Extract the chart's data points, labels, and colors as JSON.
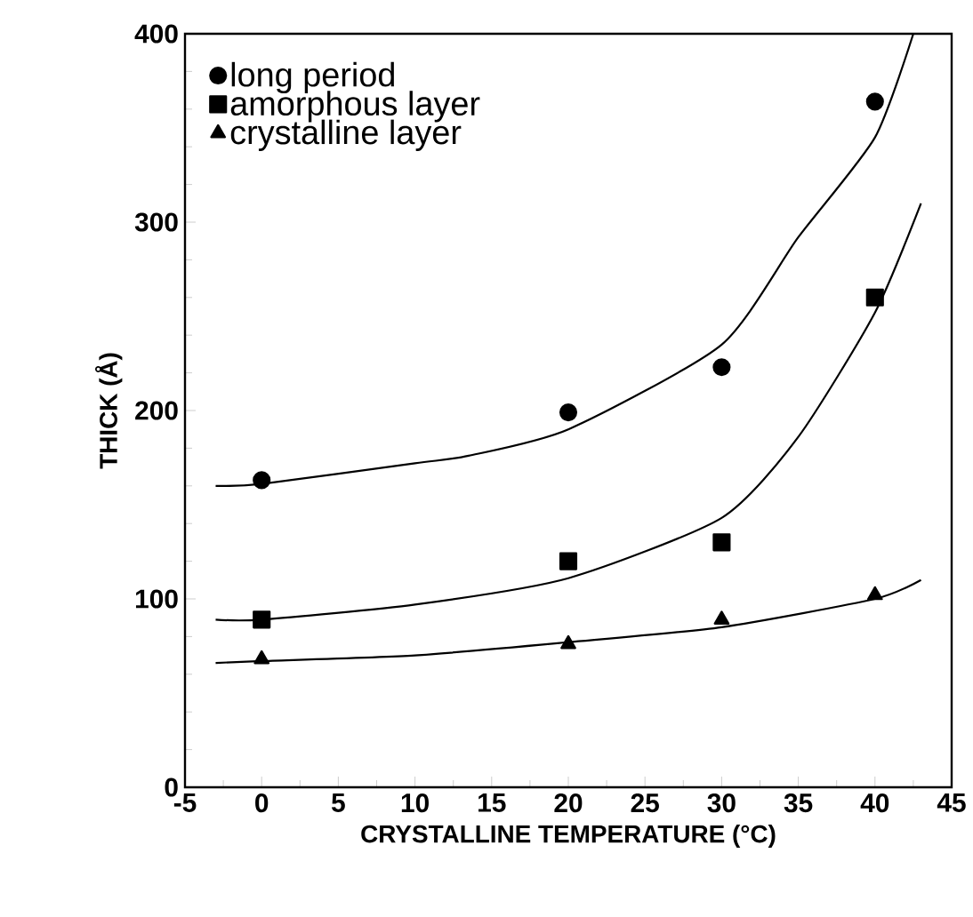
{
  "chart_data": {
    "type": "scatter",
    "xlabel": "CRYSTALLINE TEMPERATURE (°C)",
    "ylabel": "THICK (Å)",
    "xlim": [
      -5,
      45
    ],
    "xticks": [
      -5,
      0,
      5,
      10,
      15,
      20,
      25,
      30,
      35,
      40,
      45
    ],
    "ylim": [
      0,
      400
    ],
    "yticks": [
      0,
      100,
      200,
      300,
      400
    ],
    "grid": false,
    "legend": "top left",
    "series": [
      {
        "name": "long period",
        "marker": "circle",
        "color": "#000000",
        "x": [
          0,
          20,
          30,
          40
        ],
        "values": [
          163,
          199,
          223,
          364
        ]
      },
      {
        "name": "amorphous layer",
        "marker": "square",
        "color": "#000000",
        "x": [
          0,
          20,
          30,
          40
        ],
        "values": [
          89,
          120,
          130,
          260
        ]
      },
      {
        "name": "crystalline layer",
        "marker": "triangle",
        "color": "#000000",
        "x": [
          0,
          20,
          30,
          40
        ],
        "values": [
          68,
          76,
          89,
          102
        ]
      },
      {
        "type": "line",
        "marker": "none",
        "color": "#000000",
        "x": [
          -3,
          0,
          10,
          13.5,
          20,
          30,
          35,
          40,
          42.5
        ],
        "values": [
          160,
          161,
          172,
          176,
          190,
          235,
          292,
          345,
          400
        ]
      },
      {
        "type": "line",
        "marker": "none",
        "color": "#000000",
        "x": [
          -3,
          0,
          10,
          20,
          30,
          35,
          40,
          43
        ],
        "values": [
          89,
          89,
          97,
          111,
          143,
          186,
          252,
          310
        ]
      },
      {
        "type": "line",
        "marker": "none",
        "color": "#000000",
        "x": [
          -3,
          0,
          10,
          20,
          30,
          40,
          43
        ],
        "values": [
          66,
          67,
          70,
          77,
          85,
          100,
          110
        ]
      }
    ]
  }
}
